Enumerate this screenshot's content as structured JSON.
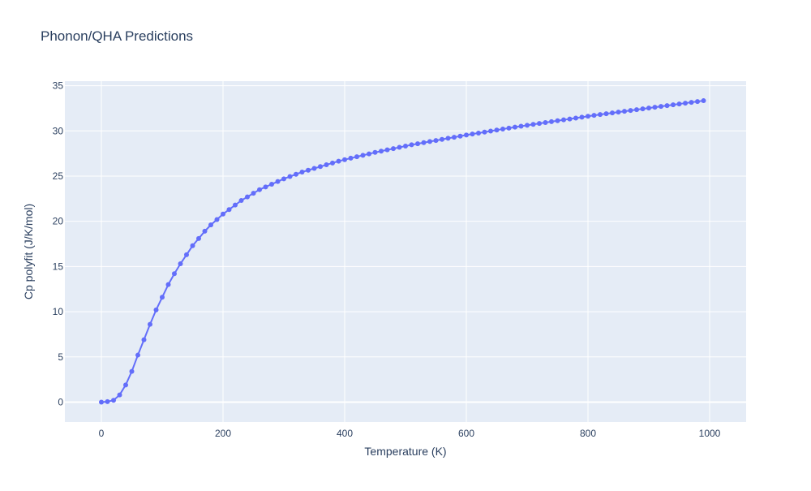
{
  "chart_data": {
    "type": "line",
    "title": "Phonon/QHA Predictions",
    "xlabel": "Temperature (K)",
    "ylabel": "Cp polyfit (J/K/mol)",
    "xlim": [
      -60,
      1060
    ],
    "ylim": [
      -2.2,
      35.5
    ],
    "x_ticks": [
      0,
      200,
      400,
      600,
      800,
      1000
    ],
    "y_ticks": [
      0,
      5,
      10,
      15,
      20,
      25,
      30,
      35
    ],
    "grid": true,
    "legend": "none",
    "colors": {
      "series": "#636efa",
      "plot_bg": "#e5ecf6",
      "grid": "#ffffff",
      "text": "#2a3f5f"
    },
    "series": [
      {
        "x": [
          0,
          10,
          20,
          30,
          40,
          50,
          60,
          70,
          80,
          90,
          100,
          110,
          120,
          130,
          140,
          150,
          160,
          170,
          180,
          190,
          200,
          210,
          220,
          230,
          240,
          250,
          260,
          270,
          280,
          290,
          300,
          310,
          320,
          330,
          340,
          350,
          360,
          370,
          380,
          390,
          400,
          410,
          420,
          430,
          440,
          450,
          460,
          470,
          480,
          490,
          500,
          510,
          520,
          530,
          540,
          550,
          560,
          570,
          580,
          590,
          600,
          610,
          620,
          630,
          640,
          650,
          660,
          670,
          680,
          690,
          700,
          710,
          720,
          730,
          740,
          750,
          760,
          770,
          780,
          790,
          800,
          810,
          820,
          830,
          840,
          850,
          860,
          870,
          880,
          890,
          900,
          910,
          920,
          930,
          940,
          950,
          960,
          970,
          980,
          990
        ],
        "y": [
          0,
          0.05,
          0.2,
          0.8,
          1.9,
          3.4,
          5.2,
          6.9,
          8.6,
          10.2,
          11.6,
          13.0,
          14.2,
          15.3,
          16.3,
          17.3,
          18.1,
          18.9,
          19.6,
          20.2,
          20.8,
          21.3,
          21.8,
          22.3,
          22.7,
          23.1,
          23.5,
          23.8,
          24.1,
          24.4,
          24.7,
          24.95,
          25.2,
          25.45,
          25.65,
          25.85,
          26.05,
          26.25,
          26.45,
          26.65,
          26.82,
          26.98,
          27.14,
          27.3,
          27.46,
          27.62,
          27.76,
          27.9,
          28.04,
          28.18,
          28.32,
          28.46,
          28.58,
          28.7,
          28.82,
          28.94,
          29.06,
          29.18,
          29.3,
          29.42,
          29.54,
          29.65,
          29.76,
          29.87,
          29.98,
          30.09,
          30.2,
          30.31,
          30.42,
          30.52,
          30.62,
          30.72,
          30.82,
          30.92,
          31.02,
          31.12,
          31.22,
          31.32,
          31.42,
          31.52,
          31.62,
          31.72,
          31.81,
          31.9,
          31.99,
          32.08,
          32.17,
          32.26,
          32.35,
          32.44,
          32.53,
          32.62,
          32.71,
          32.8,
          32.89,
          32.98,
          33.07,
          33.16,
          33.25,
          33.34
        ]
      }
    ]
  }
}
